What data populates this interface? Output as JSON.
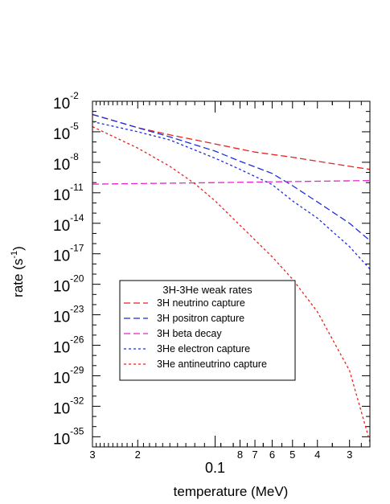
{
  "chart_data": {
    "type": "line",
    "xlabel": "temperature (MeV)",
    "ylabel_base": "rate (s",
    "ylabel_exp": "-1",
    "ylabel_close": ")",
    "x_scale": "log-reversed",
    "xlim": [
      0.3,
      0.025
    ],
    "y_scale": "log",
    "ylim_exponent": [
      -36,
      -2
    ],
    "x_ticks": [
      {
        "value": 0.3,
        "label": "3"
      },
      {
        "value": 0.2,
        "label": "2"
      },
      {
        "value": 0.1,
        "label": "0.1"
      },
      {
        "value": 0.08,
        "label": "8"
      },
      {
        "value": 0.07,
        "label": "7"
      },
      {
        "value": 0.06,
        "label": "6"
      },
      {
        "value": 0.05,
        "label": "5"
      },
      {
        "value": 0.04,
        "label": "4"
      },
      {
        "value": 0.03,
        "label": "3"
      }
    ],
    "y_ticks": [
      {
        "exp": -2,
        "base": "10",
        "sup": "-2"
      },
      {
        "exp": -5,
        "base": "10",
        "sup": "-5"
      },
      {
        "exp": -8,
        "base": "10",
        "sup": "-8"
      },
      {
        "exp": -11,
        "base": "10",
        "sup": "-11"
      },
      {
        "exp": -14,
        "base": "10",
        "sup": "-14"
      },
      {
        "exp": -17,
        "base": "10",
        "sup": "-17"
      },
      {
        "exp": -20,
        "base": "10",
        "sup": "-20"
      },
      {
        "exp": -23,
        "base": "10",
        "sup": "-23"
      },
      {
        "exp": -26,
        "base": "10",
        "sup": "-26"
      },
      {
        "exp": -29,
        "base": "10",
        "sup": "-29"
      },
      {
        "exp": -32,
        "base": "10",
        "sup": "-32"
      },
      {
        "exp": -35,
        "base": "10",
        "sup": "-35"
      }
    ],
    "legend": {
      "title": "3H-3He weak rates",
      "placement": "lower-center"
    },
    "series": [
      {
        "name": "3H neutrino capture",
        "color": "#e8211e",
        "dash": "long",
        "x": [
          0.3,
          0.2,
          0.15,
          0.1,
          0.07,
          0.05,
          0.04,
          0.03,
          0.025
        ],
        "log10_rate": [
          -3.3,
          -4.6,
          -5.3,
          -6.2,
          -7.0,
          -7.5,
          -7.9,
          -8.4,
          -8.7
        ]
      },
      {
        "name": "3H positron capture",
        "color": "#1c2ee0",
        "dash": "long",
        "x": [
          0.3,
          0.2,
          0.15,
          0.1,
          0.08,
          0.06,
          0.05,
          0.04,
          0.03,
          0.025
        ],
        "log10_rate": [
          -3.3,
          -4.6,
          -5.5,
          -6.9,
          -7.9,
          -9.1,
          -10.3,
          -11.9,
          -14.0,
          -15.7
        ]
      },
      {
        "name": "3H beta decay",
        "color": "#e625c8",
        "dash": "long",
        "x": [
          0.3,
          0.1,
          0.025
        ],
        "log10_rate": [
          -10.15,
          -10.0,
          -9.8
        ]
      },
      {
        "name": "3He electron capture",
        "color": "#1c2ee0",
        "dash": "short",
        "x": [
          0.3,
          0.2,
          0.15,
          0.1,
          0.08,
          0.06,
          0.05,
          0.04,
          0.03,
          0.025
        ],
        "log10_rate": [
          -4.0,
          -5.0,
          -5.8,
          -7.6,
          -8.7,
          -10.2,
          -11.8,
          -13.5,
          -16.3,
          -18.5
        ]
      },
      {
        "name": "3He antineutrino capture",
        "color": "#e8211e",
        "dash": "short",
        "x": [
          0.3,
          0.2,
          0.15,
          0.12,
          0.1,
          0.08,
          0.06,
          0.05,
          0.04,
          0.03,
          0.025
        ],
        "log10_rate": [
          -4.5,
          -6.6,
          -8.4,
          -10.1,
          -11.8,
          -14.2,
          -17.3,
          -19.5,
          -22.7,
          -28.5,
          -35.5
        ]
      }
    ]
  }
}
